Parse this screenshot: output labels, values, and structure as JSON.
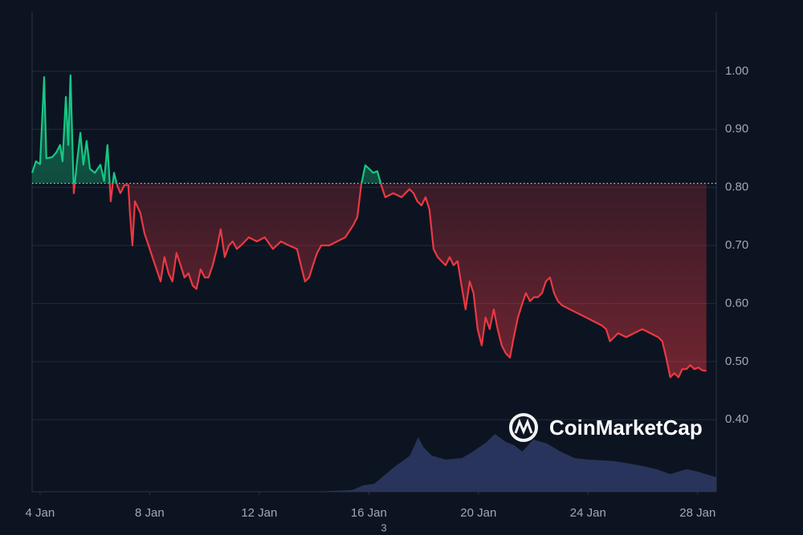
{
  "chart_data": {
    "type": "baseline-line",
    "watermark": "CoinMarketCap",
    "footnote": "3",
    "color_up": "#16c784",
    "color_down": "#ea3943",
    "baseline": 0.807,
    "xlim": [
      -0.29,
      24.68
    ],
    "ylim": [
      0.276,
      1.102
    ],
    "grid": true,
    "xticks": [
      {
        "value": 0,
        "label": "4 Jan"
      },
      {
        "value": 4,
        "label": "8 Jan"
      },
      {
        "value": 8,
        "label": "12 Jan"
      },
      {
        "value": 12,
        "label": "16 Jan"
      },
      {
        "value": 16,
        "label": "20 Jan"
      },
      {
        "value": 20,
        "label": "24 Jan"
      },
      {
        "value": 24,
        "label": "28 Jan"
      }
    ],
    "yticks": [
      {
        "value": 0.4,
        "label": "0.40"
      },
      {
        "value": 0.5,
        "label": "0.50"
      },
      {
        "value": 0.6,
        "label": "0.60"
      },
      {
        "value": 0.7,
        "label": "0.70"
      },
      {
        "value": 0.8,
        "label": "0.80"
      },
      {
        "value": 0.9,
        "label": "0.90"
      },
      {
        "value": 1,
        "label": "1.00"
      }
    ],
    "x": [
      -0.29,
      -0.15,
      0,
      0.15,
      0.23,
      0.44,
      0.59,
      0.73,
      0.82,
      0.94,
      1.03,
      1.11,
      1.23,
      1.35,
      1.47,
      1.58,
      1.7,
      1.82,
      2.0,
      2.2,
      2.34,
      2.46,
      2.58,
      2.7,
      2.81,
      2.93,
      3.08,
      3.22,
      3.28,
      3.37,
      3.46,
      3.66,
      3.81,
      3.96,
      4.1,
      4.25,
      4.4,
      4.54,
      4.69,
      4.83,
      4.98,
      5.13,
      5.27,
      5.42,
      5.57,
      5.71,
      5.86,
      6.01,
      6.15,
      6.3,
      6.45,
      6.59,
      6.74,
      6.89,
      7.03,
      7.18,
      7.33,
      7.62,
      7.91,
      8.2,
      8.5,
      8.79,
      9.08,
      9.38,
      9.52,
      9.67,
      9.82,
      9.96,
      10.11,
      10.26,
      10.55,
      10.84,
      11.14,
      11.43,
      11.58,
      11.72,
      11.87,
      12.01,
      12.16,
      12.31,
      12.45,
      12.6,
      12.89,
      13.19,
      13.48,
      13.63,
      13.77,
      13.92,
      14.07,
      14.21,
      14.36,
      14.51,
      14.65,
      14.8,
      14.95,
      15.09,
      15.24,
      15.38,
      15.53,
      15.68,
      15.82,
      15.97,
      16.12,
      16.26,
      16.41,
      16.56,
      16.7,
      16.85,
      17.0,
      17.15,
      17.29,
      17.44,
      17.58,
      17.73,
      17.88,
      18.03,
      18.17,
      18.32,
      18.46,
      18.61,
      18.76,
      18.9,
      19.05,
      19.34,
      19.63,
      19.93,
      20.22,
      20.51,
      20.66,
      20.8,
      21.1,
      21.39,
      21.68,
      21.98,
      22.27,
      22.56,
      22.71,
      22.85,
      23.0,
      23.15,
      23.3,
      23.44,
      23.59,
      23.73,
      23.88,
      24.03,
      24.17,
      24.32
    ],
    "values": [
      0.825,
      0.845,
      0.84,
      0.99,
      0.85,
      0.852,
      0.86,
      0.873,
      0.845,
      0.956,
      0.873,
      0.993,
      0.79,
      0.845,
      0.894,
      0.839,
      0.88,
      0.832,
      0.825,
      0.839,
      0.811,
      0.873,
      0.776,
      0.825,
      0.804,
      0.79,
      0.804,
      0.804,
      0.756,
      0.7,
      0.776,
      0.756,
      0.721,
      0.7,
      0.68,
      0.659,
      0.638,
      0.68,
      0.652,
      0.638,
      0.687,
      0.666,
      0.645,
      0.652,
      0.631,
      0.625,
      0.659,
      0.645,
      0.645,
      0.666,
      0.694,
      0.728,
      0.68,
      0.7,
      0.707,
      0.694,
      0.7,
      0.714,
      0.707,
      0.714,
      0.694,
      0.707,
      0.7,
      0.694,
      0.666,
      0.638,
      0.645,
      0.666,
      0.687,
      0.7,
      0.7,
      0.707,
      0.714,
      0.735,
      0.749,
      0.804,
      0.838,
      0.832,
      0.825,
      0.828,
      0.804,
      0.783,
      0.79,
      0.783,
      0.797,
      0.79,
      0.776,
      0.769,
      0.783,
      0.762,
      0.694,
      0.68,
      0.673,
      0.666,
      0.68,
      0.666,
      0.673,
      0.631,
      0.59,
      0.638,
      0.618,
      0.556,
      0.528,
      0.576,
      0.556,
      0.59,
      0.556,
      0.528,
      0.514,
      0.507,
      0.542,
      0.576,
      0.597,
      0.618,
      0.604,
      0.611,
      0.611,
      0.618,
      0.638,
      0.645,
      0.618,
      0.604,
      0.597,
      0.59,
      0.583,
      0.576,
      0.569,
      0.562,
      0.556,
      0.535,
      0.549,
      0.542,
      0.549,
      0.556,
      0.549,
      0.542,
      0.535,
      0.507,
      0.473,
      0.48,
      0.473,
      0.487,
      0.487,
      0.494,
      0.487,
      0.49,
      0.485,
      0.484
    ],
    "volume": {
      "color": "#2b3762",
      "ylim": [
        0,
        100
      ],
      "x": [
        -0.29,
        10.0,
        11.4,
        11.8,
        12.2,
        12.9,
        13.5,
        13.8,
        14.0,
        14.3,
        14.8,
        15.4,
        15.8,
        16.3,
        16.6,
        17.0,
        17.3,
        17.6,
        18.0,
        18.5,
        19.0,
        19.5,
        20.0,
        21.0,
        21.5,
        22.0,
        22.5,
        23.0,
        23.6,
        24.0,
        24.68
      ],
      "values": [
        0,
        0,
        2,
        8,
        10,
        30,
        45,
        68,
        55,
        45,
        40,
        42,
        50,
        62,
        72,
        62,
        58,
        50,
        65,
        60,
        50,
        42,
        40,
        38,
        35,
        32,
        28,
        22,
        28,
        25,
        18
      ]
    }
  }
}
